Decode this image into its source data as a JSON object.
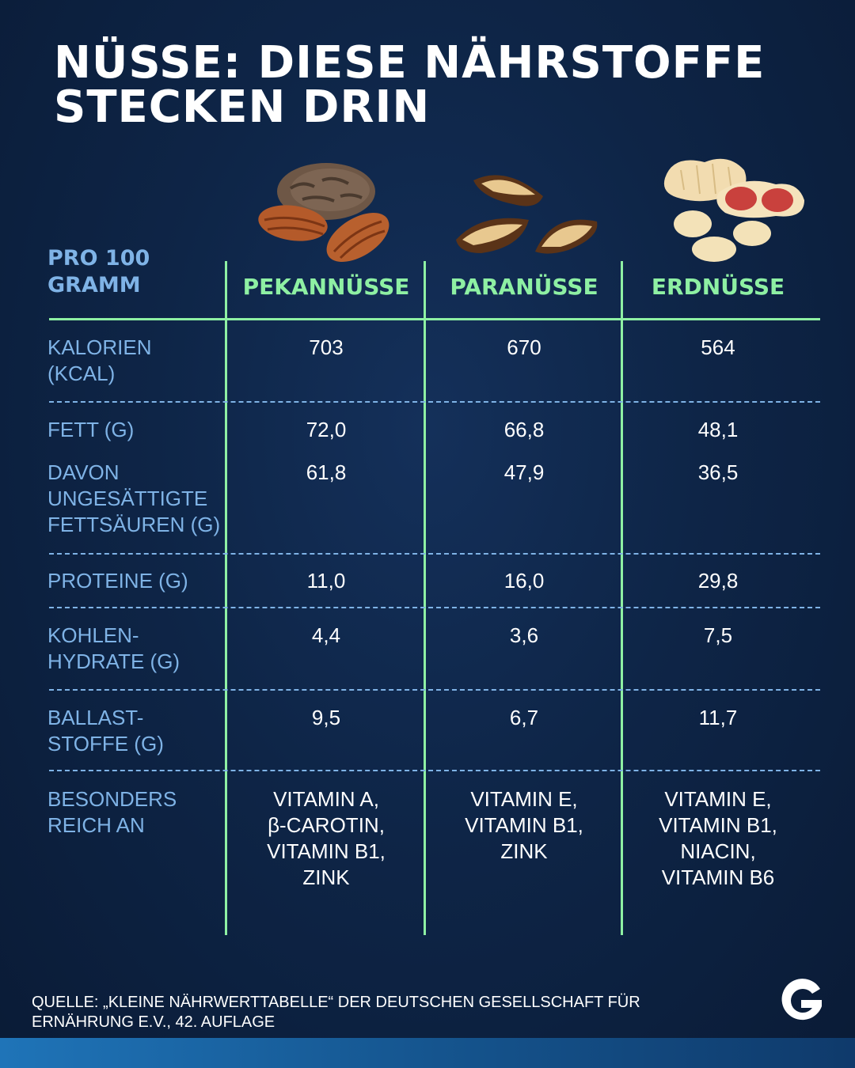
{
  "title": {
    "line1": "NÜSSE: DIESE NÄHRSTOFFE",
    "line2": "STECKEN DRIN"
  },
  "table": {
    "corner_label": "PRO 100\nGRAMM",
    "columns": [
      "PEKANNÜSSE",
      "PARANÜSSE",
      "ERDNÜSSE"
    ],
    "rows": [
      {
        "label": "KALORIEN\n(KCAL)",
        "values": [
          "703",
          "670",
          "564"
        ]
      },
      {
        "label": "FETT (G)",
        "values": [
          "72,0",
          "66,8",
          "48,1"
        ]
      },
      {
        "label": "DAVON\nUNGESÄTTIGTE\nFETTSÄUREN (G)",
        "values": [
          "61,8",
          "47,9",
          "36,5"
        ]
      },
      {
        "label": "PROTEINE (G)",
        "values": [
          "11,0",
          "16,0",
          "29,8"
        ]
      },
      {
        "label": "KOHLEN-\nHYDRATE (G)",
        "values": [
          "4,4",
          "3,6",
          "7,5"
        ]
      },
      {
        "label": "BALLAST-\nSTOFFE (G)",
        "values": [
          "9,5",
          "6,7",
          "11,7"
        ]
      },
      {
        "label": "BESONDERS\nREICH AN",
        "values": [
          "VITAMIN A,\nβ-CAROTIN,\nVITAMIN B1,\nZINK",
          "VITAMIN E,\nVITAMIN B1,\nZINK",
          "VITAMIN E,\nVITAMIN B1,\nNIACIN,\nVITAMIN B6"
        ]
      }
    ]
  },
  "chart_data": {
    "type": "table",
    "title": "NÜSSE: DIESE NÄHRSTOFFE STECKEN DRIN",
    "columns": [
      "PEKANNÜSSE",
      "PARANÜSSE",
      "ERDNÜSSE"
    ],
    "rows": [
      {
        "label": "KALORIEN (KCAL)",
        "values": [
          703,
          670,
          564
        ]
      },
      {
        "label": "FETT (G)",
        "values": [
          72.0,
          66.8,
          48.1
        ]
      },
      {
        "label": "DAVON UNGESÄTTIGTE FETTSÄUREN (G)",
        "values": [
          61.8,
          47.9,
          36.5
        ]
      },
      {
        "label": "PROTEINE (G)",
        "values": [
          11.0,
          16.0,
          29.8
        ]
      },
      {
        "label": "KOHLENHYDRATE (G)",
        "values": [
          4.4,
          3.6,
          7.5
        ]
      },
      {
        "label": "BALLASTSTOFFE (G)",
        "values": [
          9.5,
          6.7,
          11.7
        ]
      }
    ]
  },
  "source": "QUELLE: „KLEINE NÄHRWERTTABELLE“ DER DEUTSCHEN GESELLSCHAFT FÜR\nERNÄHRUNG E.V., 42. AUFLAGE",
  "icons": [
    "pecan-nuts-icon",
    "brazil-nuts-icon",
    "peanuts-icon",
    "brand-logo-icon"
  ],
  "colors": {
    "accent_green": "#8ef0a3",
    "label_blue": "#7fb3e6",
    "background": "#0e2547"
  }
}
